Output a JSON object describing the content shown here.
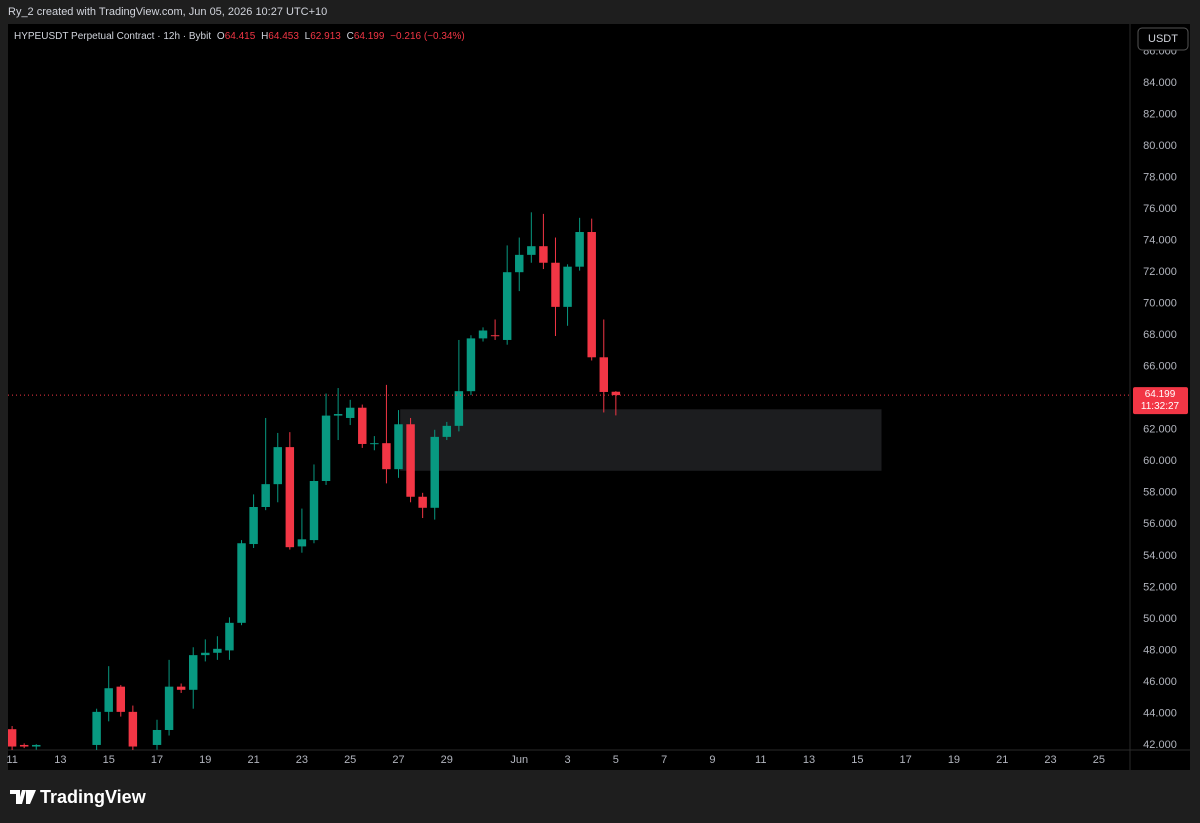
{
  "header": {
    "attribution": "Ry_2 created with TradingView.com, Jun 05, 2026 10:27 UTC+10"
  },
  "currency_button": "USDT",
  "countdown": "11:32:27",
  "footer": {
    "logo": "TradingView"
  },
  "chart_data": {
    "type": "candlestick",
    "title": "HYPEUSDT Perpetual Contract · 12h · Bybit",
    "ohlc_labels": [
      "O",
      "H",
      "L",
      "C"
    ],
    "change": "−0.216 (−0.34%)",
    "up_color": "#089981",
    "down_color": "#f23645",
    "x": [
      11,
      11.5,
      12,
      14.5,
      15,
      15.5,
      16,
      17,
      17.5,
      18,
      18.5,
      19,
      19.5,
      20,
      20.5,
      21,
      21.5,
      22,
      22.5,
      23,
      23.5,
      24,
      24.5,
      25,
      25.5,
      26,
      26.5,
      27,
      27.5,
      28,
      28.5,
      29,
      29.5,
      30,
      30.5,
      31,
      31.5,
      32,
      32.5,
      33,
      33.5,
      34,
      34.5,
      35,
      35.5,
      36
    ],
    "open": [
      43.0,
      42.0,
      41.9,
      42.0,
      44.1,
      45.7,
      44.1,
      42.0,
      42.95,
      45.7,
      45.5,
      47.7,
      47.85,
      48.0,
      49.75,
      54.75,
      57.1,
      58.55,
      60.9,
      54.6,
      55.0,
      58.75,
      62.9,
      62.75,
      63.4,
      61.1,
      61.15,
      59.5,
      62.35,
      57.75,
      57.05,
      61.55,
      62.25,
      64.45,
      67.8,
      68.0,
      67.7,
      72.0,
      73.1,
      73.65,
      72.6,
      69.8,
      72.35,
      74.55,
      66.6,
      64.415
    ],
    "high": [
      43.2,
      42.1,
      42.05,
      44.3,
      47.0,
      45.8,
      44.5,
      43.6,
      47.4,
      45.9,
      48.2,
      48.7,
      48.9,
      50.1,
      55.0,
      57.9,
      62.75,
      61.8,
      61.85,
      57.0,
      59.8,
      64.3,
      64.65,
      63.9,
      63.6,
      61.6,
      64.85,
      63.25,
      62.75,
      58.0,
      62.0,
      62.5,
      67.7,
      68.0,
      68.5,
      69.0,
      73.7,
      74.2,
      75.8,
      75.7,
      74.2,
      72.5,
      75.45,
      75.4,
      69.0,
      64.453
    ],
    "low": [
      41.5,
      41.8,
      41.7,
      41.5,
      43.5,
      43.8,
      41.5,
      41.7,
      42.6,
      45.3,
      44.3,
      47.3,
      47.4,
      47.4,
      49.6,
      54.5,
      56.9,
      57.4,
      54.4,
      54.2,
      54.8,
      58.5,
      61.35,
      62.3,
      60.85,
      60.7,
      58.6,
      58.95,
      57.4,
      56.4,
      56.3,
      61.35,
      61.9,
      64.2,
      67.6,
      67.7,
      67.4,
      70.8,
      72.6,
      72.2,
      67.95,
      68.6,
      72.1,
      66.4,
      63.1,
      62.913
    ],
    "close": [
      41.9,
      41.9,
      42.0,
      44.1,
      45.6,
      44.1,
      41.9,
      42.95,
      45.7,
      45.5,
      47.7,
      47.85,
      48.1,
      49.75,
      54.8,
      57.1,
      58.55,
      60.9,
      54.55,
      55.05,
      58.75,
      62.9,
      63.0,
      63.4,
      61.1,
      61.15,
      59.5,
      62.35,
      57.75,
      57.05,
      61.55,
      62.25,
      64.45,
      67.8,
      68.3,
      67.95,
      72.0,
      73.1,
      73.65,
      72.6,
      69.8,
      72.35,
      74.55,
      66.6,
      64.4,
      64.199
    ],
    "box": {
      "x": [
        27.07,
        47.0
      ],
      "y": [
        59.4,
        63.3
      ]
    },
    "xlim": [
      10.83,
      57.29
    ],
    "xticks": [
      11,
      13,
      15,
      17,
      19,
      21,
      23,
      25,
      27,
      29,
      {
        "value": 32,
        "label": "Jun"
      },
      {
        "value": 34,
        "label": "3"
      },
      {
        "value": 36,
        "label": "5"
      },
      {
        "value": 38,
        "label": "7"
      },
      {
        "value": 40,
        "label": "9"
      },
      {
        "value": 42,
        "label": "11"
      },
      {
        "value": 44,
        "label": "13"
      },
      {
        "value": 46,
        "label": "15"
      },
      {
        "value": 48,
        "label": "17"
      },
      {
        "value": 50,
        "label": "19"
      },
      {
        "value": 52,
        "label": "21"
      },
      {
        "value": 54,
        "label": "23"
      },
      {
        "value": 56,
        "label": "25"
      }
    ],
    "ylim": [
      41.68,
      87.75
    ],
    "yticks": [
      {
        "value": 42,
        "label": "42.000"
      },
      {
        "value": 44,
        "label": "44.000"
      },
      {
        "value": 46,
        "label": "46.000"
      },
      {
        "value": 48,
        "label": "48.000"
      },
      {
        "value": 50,
        "label": "50.000"
      },
      {
        "value": 52,
        "label": "52.000"
      },
      {
        "value": 54,
        "label": "54.000"
      },
      {
        "value": 56,
        "label": "56.000"
      },
      {
        "value": 58,
        "label": "58.000"
      },
      {
        "value": 60,
        "label": "60.000"
      },
      {
        "value": 62,
        "label": "62.000"
      },
      {
        "value": 64,
        "label": "64.000"
      },
      {
        "value": 66,
        "label": "66.000"
      },
      {
        "value": 68,
        "label": "68.000"
      },
      {
        "value": 70,
        "label": "70.000"
      },
      {
        "value": 72,
        "label": "72.000"
      },
      {
        "value": 74,
        "label": "74.000"
      },
      {
        "value": 76,
        "label": "76.000"
      },
      {
        "value": 78,
        "label": "78.000"
      },
      {
        "value": 80,
        "label": "80.000"
      },
      {
        "value": 82,
        "label": "82.000"
      },
      {
        "value": 84,
        "label": "84.000"
      },
      {
        "value": 86,
        "label": "86.000"
      }
    ]
  }
}
